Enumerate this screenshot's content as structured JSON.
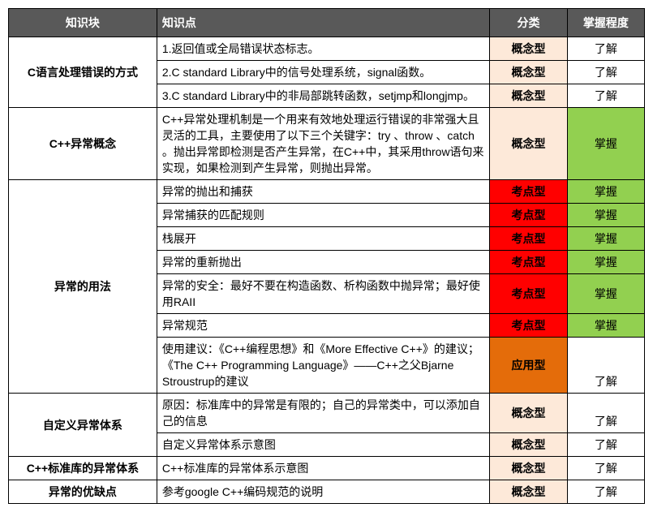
{
  "header": {
    "block": "知识块",
    "point": "知识点",
    "category": "分类",
    "level": "掌握程度"
  },
  "colors": {
    "header_bg": "#595959",
    "header_fg": "#ffffff",
    "cat_concept_bg": "#fde9d9",
    "cat_exam_bg": "#ff0000",
    "cat_apply_bg": "#e46c0a",
    "level_know_bg": "#ffffff",
    "level_master_bg": "#92d050",
    "border": "#000000"
  },
  "category_labels": {
    "concept": "概念型",
    "exam": "考点型",
    "apply": "应用型"
  },
  "level_labels": {
    "know": "了解",
    "master": "掌握"
  },
  "blocks": [
    {
      "name": "C语言处理错误的方式",
      "rows": [
        {
          "point": "1.返回值或全局错误状态标志。",
          "cat": "concept",
          "level": "know"
        },
        {
          "point": "2.C standard Library中的信号处理系统，signal函数。",
          "cat": "concept",
          "level": "know"
        },
        {
          "point": "3.C standard Library中的非局部跳转函数，setjmp和longjmp。",
          "cat": "concept",
          "level": "know"
        }
      ]
    },
    {
      "name": "C++异常概念",
      "rows": [
        {
          "point": "C++异常处理机制是一个用来有效地处理运行错误的非常强大且灵活的工具，主要使用了以下三个关键字：try 、throw 、catch 。抛出异常即检测是否产生异常，在C++中，其采用throw语句来实现，如果检测到产生异常，则抛出异常。",
          "cat": "concept",
          "level": "master"
        }
      ]
    },
    {
      "name": "异常的用法",
      "rows": [
        {
          "point": "异常的抛出和捕获",
          "cat": "exam",
          "level": "master"
        },
        {
          "point": "异常捕获的匹配规则",
          "cat": "exam",
          "level": "master"
        },
        {
          "point": "栈展开",
          "cat": "exam",
          "level": "master"
        },
        {
          "point": "异常的重新抛出",
          "cat": "exam",
          "level": "master"
        },
        {
          "point": "异常的安全：最好不要在构造函数、析构函数中抛异常；最好使用RAII",
          "cat": "exam",
          "level": "master"
        },
        {
          "point": "异常规范",
          "cat": "exam",
          "level": "master"
        },
        {
          "point": "使用建议：《C++编程思想》和《More Effective C++》的建议；《The C++ Programming Language》——C++之父Bjarne Stroustrup的建议",
          "cat": "apply",
          "level": "know"
        }
      ]
    },
    {
      "name": "自定义异常体系",
      "rows": [
        {
          "point": "原因：标准库中的异常是有限的；自己的异常类中，可以添加自己的信息",
          "cat": "concept",
          "level": "know"
        },
        {
          "point": "自定义异常体系示意图",
          "cat": "concept",
          "level": "know"
        }
      ]
    },
    {
      "name": "C++标准库的异常体系",
      "rows": [
        {
          "point": "C++标准库的异常体系示意图",
          "cat": "concept",
          "level": "know"
        }
      ]
    },
    {
      "name": "异常的优缺点",
      "rows": [
        {
          "point": "参考google C++编码规范的说明",
          "cat": "concept",
          "level": "know"
        }
      ]
    }
  ]
}
